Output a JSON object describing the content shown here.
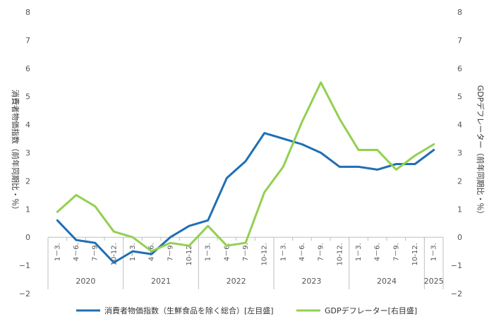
{
  "chart_data": {
    "type": "line",
    "categories": [
      "1-3.",
      "4-6.",
      "7-9.",
      "10-12.",
      "1-3.",
      "4-6.",
      "7-9.",
      "10-12.",
      "1-3.",
      "4-6.",
      "7-9.",
      "10-12.",
      "1-3.",
      "4-6.",
      "7-9.",
      "10-12.",
      "1-3.",
      "4-6.",
      "7-9.",
      "10-12.",
      "1-3."
    ],
    "category_labels": [
      "1－3.",
      "4－6.",
      "7－9.",
      "10-12.",
      "1－3.",
      "4－6.",
      "7－9.",
      "10-12.",
      "1－3.",
      "4－6.",
      "7－9.",
      "10-12.",
      "1－3.",
      "4－6.",
      "7－9.",
      "10-12.",
      "1－3.",
      "4－6.",
      "7－9.",
      "10-12.",
      "1－3."
    ],
    "years": [
      {
        "label": "2020",
        "start": 0,
        "count": 4
      },
      {
        "label": "2021",
        "start": 4,
        "count": 4
      },
      {
        "label": "2022",
        "start": 8,
        "count": 4
      },
      {
        "label": "2023",
        "start": 12,
        "count": 4
      },
      {
        "label": "2024",
        "start": 16,
        "count": 4
      },
      {
        "label": "2025",
        "start": 20,
        "count": 1
      }
    ],
    "series": [
      {
        "name": "消費者物価指数（生鮮食品を除く総合）[左目盛]",
        "axis": "left",
        "color": "#1f6fb5",
        "values": [
          0.6,
          -0.1,
          -0.2,
          -0.9,
          -0.5,
          -0.6,
          0.0,
          0.4,
          0.6,
          2.1,
          2.7,
          3.7,
          3.5,
          3.3,
          3.0,
          2.5,
          2.5,
          2.4,
          2.6,
          2.6,
          3.1
        ]
      },
      {
        "name": "GDPデフレーター[右目盛]",
        "axis": "right",
        "color": "#92d050",
        "values": [
          0.9,
          1.5,
          1.1,
          0.2,
          0.0,
          -0.5,
          -0.2,
          -0.3,
          0.4,
          -0.3,
          -0.2,
          1.6,
          2.5,
          4.1,
          5.5,
          4.2,
          3.1,
          3.1,
          2.4,
          2.9,
          3.3
        ]
      }
    ],
    "ylabel": "消費者物価指数（前年同期比・％）",
    "y2label": "GDPデフレーター（前年同期比・％）",
    "ylim": [
      -2,
      8
    ],
    "y2lim": [
      -2,
      8
    ],
    "yticks": [
      -2,
      -1,
      0,
      1,
      2,
      3,
      4,
      5,
      6,
      7,
      8
    ],
    "grid": false,
    "legend_position": "bottom"
  }
}
